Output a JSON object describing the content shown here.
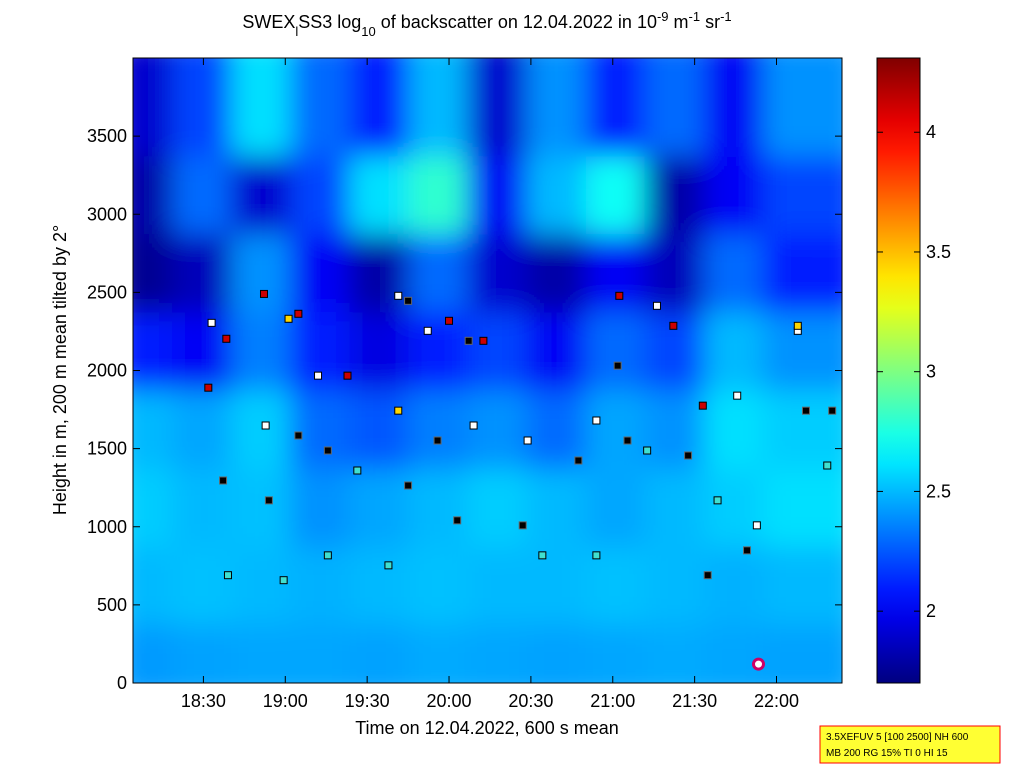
{
  "chart_data": {
    "type": "heatmap_scatter",
    "title": [
      {
        "text": "SWEX"
      },
      {
        "text": "l",
        "shift": "sub"
      },
      {
        "text": "SS3 log"
      },
      {
        "text": "10",
        "shift": "sub"
      },
      {
        "text": " of backscatter on 12.04.2022 in 10"
      },
      {
        "text": "-9",
        "shift": "sup"
      },
      {
        "text": " m"
      },
      {
        "text": "-1",
        "shift": "sup"
      },
      {
        "text": " sr"
      },
      {
        "text": "-1",
        "shift": "sup"
      }
    ],
    "x_label": "Time on 12.04.2022, 600 s mean",
    "y_label": "Height in m, 200 m mean tilted by 2°",
    "xlim": [
      18.07,
      22.4
    ],
    "ylim": [
      0,
      4000
    ],
    "xticks": [
      {
        "value": 18.5,
        "label": "18:30"
      },
      {
        "value": 19,
        "label": "19:00"
      },
      {
        "value": 19.5,
        "label": "19:30"
      },
      {
        "value": 20,
        "label": "20:00"
      },
      {
        "value": 20.5,
        "label": "20:30"
      },
      {
        "value": 21,
        "label": "21:00"
      },
      {
        "value": 21.5,
        "label": "21:30"
      },
      {
        "value": 22,
        "label": "22:00"
      }
    ],
    "yticks": [
      0,
      500,
      1000,
      1500,
      2000,
      2500,
      3000,
      3500
    ],
    "colormap": "jet",
    "clim": [
      1.7,
      4.31
    ],
    "cticks": [
      2,
      2.5,
      3,
      3.5,
      4
    ],
    "z": [
      [
        2.42,
        2.44,
        2.45,
        2.45,
        2.44,
        2.46,
        2.45,
        2.44,
        2.45,
        2.46,
        2.45,
        2.44
      ],
      [
        2.5,
        2.52,
        2.5,
        2.48,
        2.5,
        2.52,
        2.5,
        2.5,
        2.52,
        2.5,
        2.48,
        2.5
      ],
      [
        2.55,
        2.5,
        2.52,
        2.4,
        2.45,
        2.5,
        2.55,
        2.5,
        2.45,
        2.5,
        2.55,
        2.6
      ],
      [
        2.5,
        2.45,
        2.55,
        2.3,
        2.25,
        2.35,
        2.4,
        2.3,
        2.45,
        2.4,
        2.6,
        2.55
      ],
      [
        2.1,
        2.0,
        2.35,
        2.1,
        1.95,
        2.1,
        2.2,
        2.0,
        2.3,
        2.2,
        2.5,
        2.4
      ],
      [
        1.75,
        1.85,
        2.4,
        2.0,
        1.8,
        2.3,
        1.9,
        1.8,
        2.0,
        1.85,
        2.3,
        2.1
      ],
      [
        1.8,
        2.3,
        1.9,
        2.2,
        2.6,
        2.8,
        2.0,
        2.5,
        2.7,
        1.8,
        2.0,
        2.2
      ],
      [
        1.9,
        2.2,
        2.6,
        2.3,
        2.1,
        2.5,
        1.9,
        2.4,
        2.1,
        2.3,
        2.0,
        2.4
      ]
    ],
    "series": [
      {
        "color": "#ffffff",
        "x": [
          18.55,
          18.88,
          19.2,
          19.69,
          19.87,
          20.15,
          20.48,
          20.9,
          21.27,
          21.76,
          22.13,
          21.88
        ],
        "values": [
          2305,
          1648,
          1967,
          2478,
          2254,
          1648,
          1552,
          1680,
          2414,
          1839,
          2254,
          1009
        ]
      },
      {
        "color": "#000000",
        "x": [
          18.62,
          18.9,
          19.08,
          19.26,
          19.75,
          19.93,
          20.05,
          20.45,
          20.79,
          21.09,
          21.46,
          21.58,
          21.82,
          22.18,
          22.34,
          19.75,
          20.12,
          21.03
        ],
        "values": [
          1296,
          1169,
          1584,
          1488,
          1264,
          1552,
          1041,
          1009,
          1424,
          1552,
          1456,
          690,
          849,
          1743,
          1743,
          2446,
          2190,
          2031
        ]
      },
      {
        "color": "#40e0d0",
        "x": [
          18.65,
          19.26,
          19.63,
          20.57,
          20.9,
          21.21,
          21.64,
          22.31,
          19.44,
          18.99
        ],
        "values": [
          690,
          817,
          753,
          817,
          817,
          1488,
          1169,
          1392,
          1360,
          658
        ]
      },
      {
        "color": "#cc0000",
        "x": [
          18.64,
          18.87,
          19.08,
          19.38,
          20.0,
          20.21,
          21.04,
          21.37,
          21.55,
          18.53
        ],
        "values": [
          2203,
          2490,
          2363,
          1967,
          2318,
          2190,
          2478,
          2286,
          1775,
          1890
        ]
      },
      {
        "color": "#ffd700",
        "x": [
          19.02,
          19.69,
          22.13
        ],
        "values": [
          2331,
          1743,
          2286
        ]
      },
      {
        "color": "#cc0066",
        "marker": "circle",
        "x": [
          21.89
        ],
        "values": [
          121
        ]
      }
    ],
    "annotation": [
      "3.5XEFUV 5 [100 2500] NH 600",
      "MB 200 RG 15% TI 0 HI 15"
    ]
  }
}
